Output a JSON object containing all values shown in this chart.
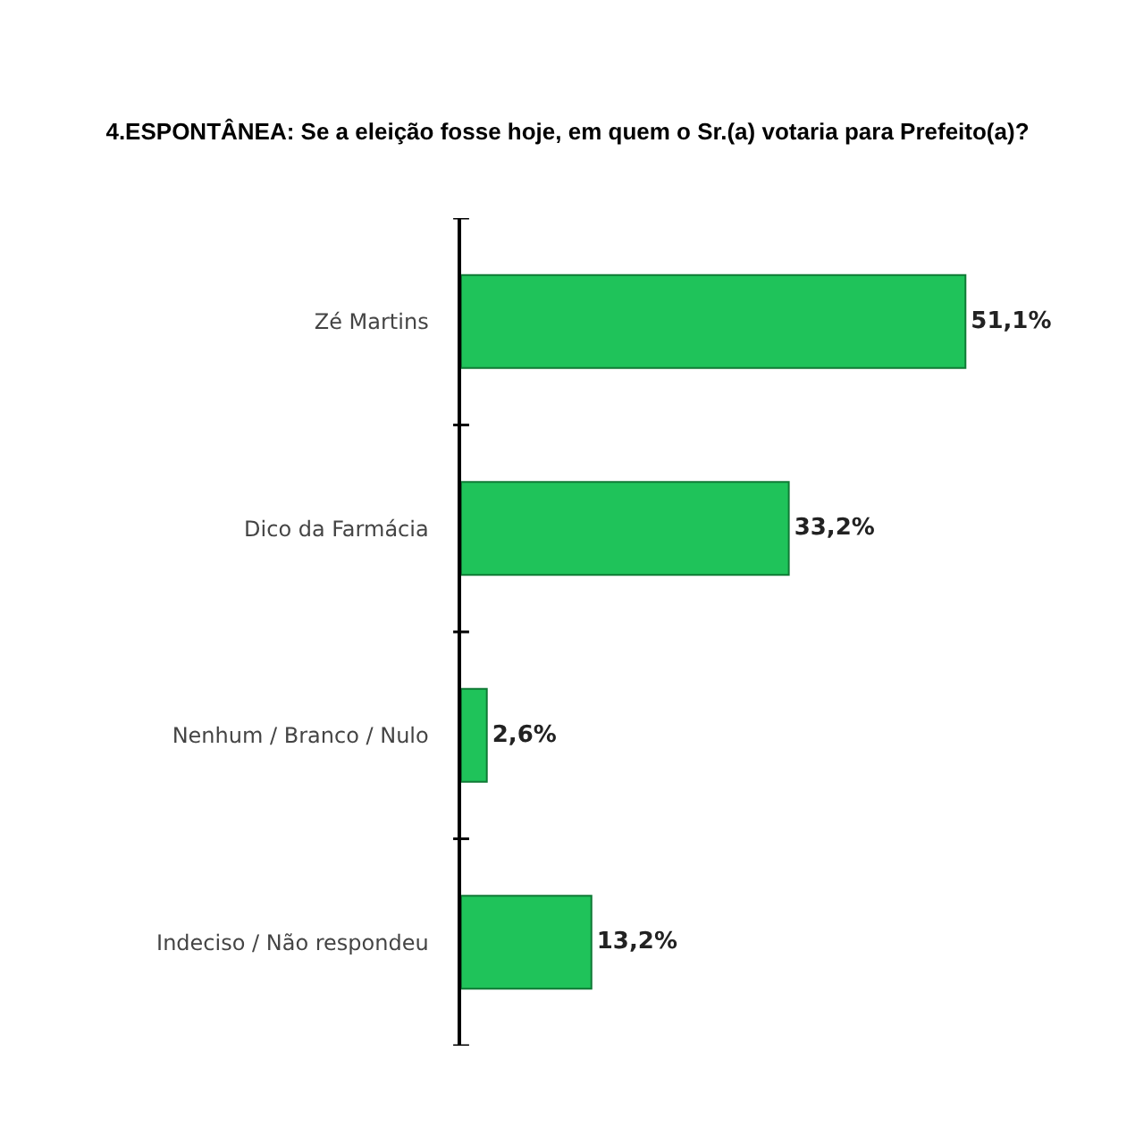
{
  "chart_data": {
    "type": "bar",
    "orientation": "horizontal",
    "title": "4.ESPONTÂNEA: Se a eleição fosse hoje, em quem o Sr.(a) votaria para Prefeito(a)?",
    "categories": [
      "Zé Martins",
      "Dico da Farmácia",
      "Nenhum / Branco / Nulo",
      "Indeciso / Não respondeu"
    ],
    "values": [
      51.1,
      33.2,
      2.6,
      13.2
    ],
    "value_labels": [
      "51,1%",
      "33,2%",
      "2,6%",
      "13,2%"
    ],
    "color": "#1fc35a"
  }
}
